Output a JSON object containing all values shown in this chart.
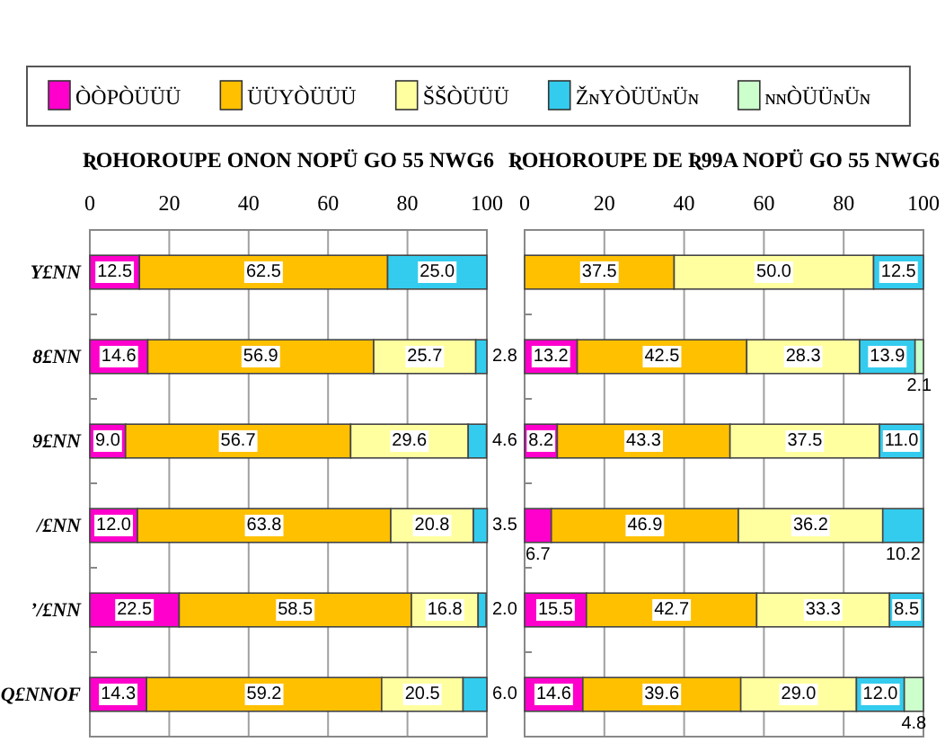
{
  "chart_data": [
    {
      "type": "bar",
      "orientation": "horizontal",
      "stacked": true,
      "title": "ƦOHOROUPE ONON NOPÜ GO 55 NWG6",
      "legend": "top",
      "grid": "x",
      "categories": [
        "Y£NN",
        "8£NN",
        "9£NN",
        "/£NN",
        "ʼ/£NN",
        "Q£NNOF"
      ],
      "xlim": [
        0,
        100
      ],
      "xticks": [
        0,
        20,
        40,
        60,
        80,
        100
      ],
      "series": [
        {
          "name": "ÒÒPÒÜÜÜ",
          "color": "#ff00cc",
          "values": [
            12.5,
            14.6,
            9.0,
            12.0,
            22.5,
            14.3
          ],
          "value_labels": [
            "12.5",
            "14.6",
            "9.0",
            "12.0",
            "22.5",
            "14.3"
          ]
        },
        {
          "name": "ÜÜYÒÜÜÜ",
          "color": "#ffc000",
          "values": [
            62.5,
            56.9,
            56.7,
            63.8,
            58.5,
            59.2
          ],
          "value_labels": [
            "62.5",
            "56.9",
            "56.7",
            "63.8",
            "58.5",
            "59.2"
          ]
        },
        {
          "name": "ŠŠÒÜÜÜ",
          "color": "#ffffa0",
          "values": [
            null,
            25.7,
            29.6,
            20.8,
            16.8,
            20.5
          ],
          "value_labels": [
            null,
            "25.7",
            "29.6",
            "20.8",
            "16.8",
            "20.5"
          ]
        },
        {
          "name": "ŽɴYÒÜÜɴÜɴ",
          "color": "#33ccee",
          "values": [
            25.0,
            2.8,
            4.6,
            3.5,
            2.0,
            6.0
          ],
          "value_labels": [
            "25.0",
            "2.8",
            "4.6",
            "3.5",
            "2.0",
            "6.0"
          ]
        },
        {
          "name": "ɴɴÒÜÜɴÜɴ",
          "color": "#ccffcc",
          "values": [
            null,
            null,
            null,
            null,
            null,
            null
          ]
        }
      ]
    },
    {
      "type": "bar",
      "orientation": "horizontal",
      "stacked": true,
      "title": "ƦOHOROUPE DE Ʀ99A NOPÜ GO 55 NWG6",
      "grid": "x",
      "tick_labels": "x",
      "categories": [
        null,
        null,
        null,
        null,
        null,
        null
      ],
      "xlim": [
        0,
        100
      ],
      "xticks": [
        0,
        20,
        40,
        60,
        80,
        100
      ],
      "series": [
        {
          "color": "#ff00cc",
          "values": [
            null,
            13.2,
            8.2,
            6.7,
            15.5,
            14.6
          ],
          "value_labels": [
            null,
            "13.2",
            "8.2",
            "6.7",
            "15.5",
            "14.6"
          ]
        },
        {
          "color": "#ffc000",
          "values": [
            37.5,
            42.5,
            43.3,
            46.9,
            42.7,
            39.6
          ],
          "value_labels": [
            "37.5",
            "42.5",
            "43.3",
            "46.9",
            "42.7",
            "39.6"
          ]
        },
        {
          "color": "#ffffa0",
          "values": [
            50.0,
            28.3,
            37.5,
            36.2,
            33.3,
            29.0
          ],
          "value_labels": [
            "50.0",
            "28.3",
            "37.5",
            "36.2",
            "33.3",
            "29.0"
          ]
        },
        {
          "color": "#33ccee",
          "values": [
            12.5,
            13.9,
            11.0,
            10.2,
            8.5,
            12.0
          ],
          "value_labels": [
            "12.5",
            "13.9",
            "11.0",
            "10.2",
            "8.5",
            "12.0"
          ]
        },
        {
          "color": "#ccffcc",
          "values": [
            null,
            2.1,
            null,
            null,
            null,
            4.8
          ],
          "value_labels": [
            null,
            "2.1",
            null,
            null,
            null,
            "4.8"
          ]
        }
      ]
    }
  ]
}
